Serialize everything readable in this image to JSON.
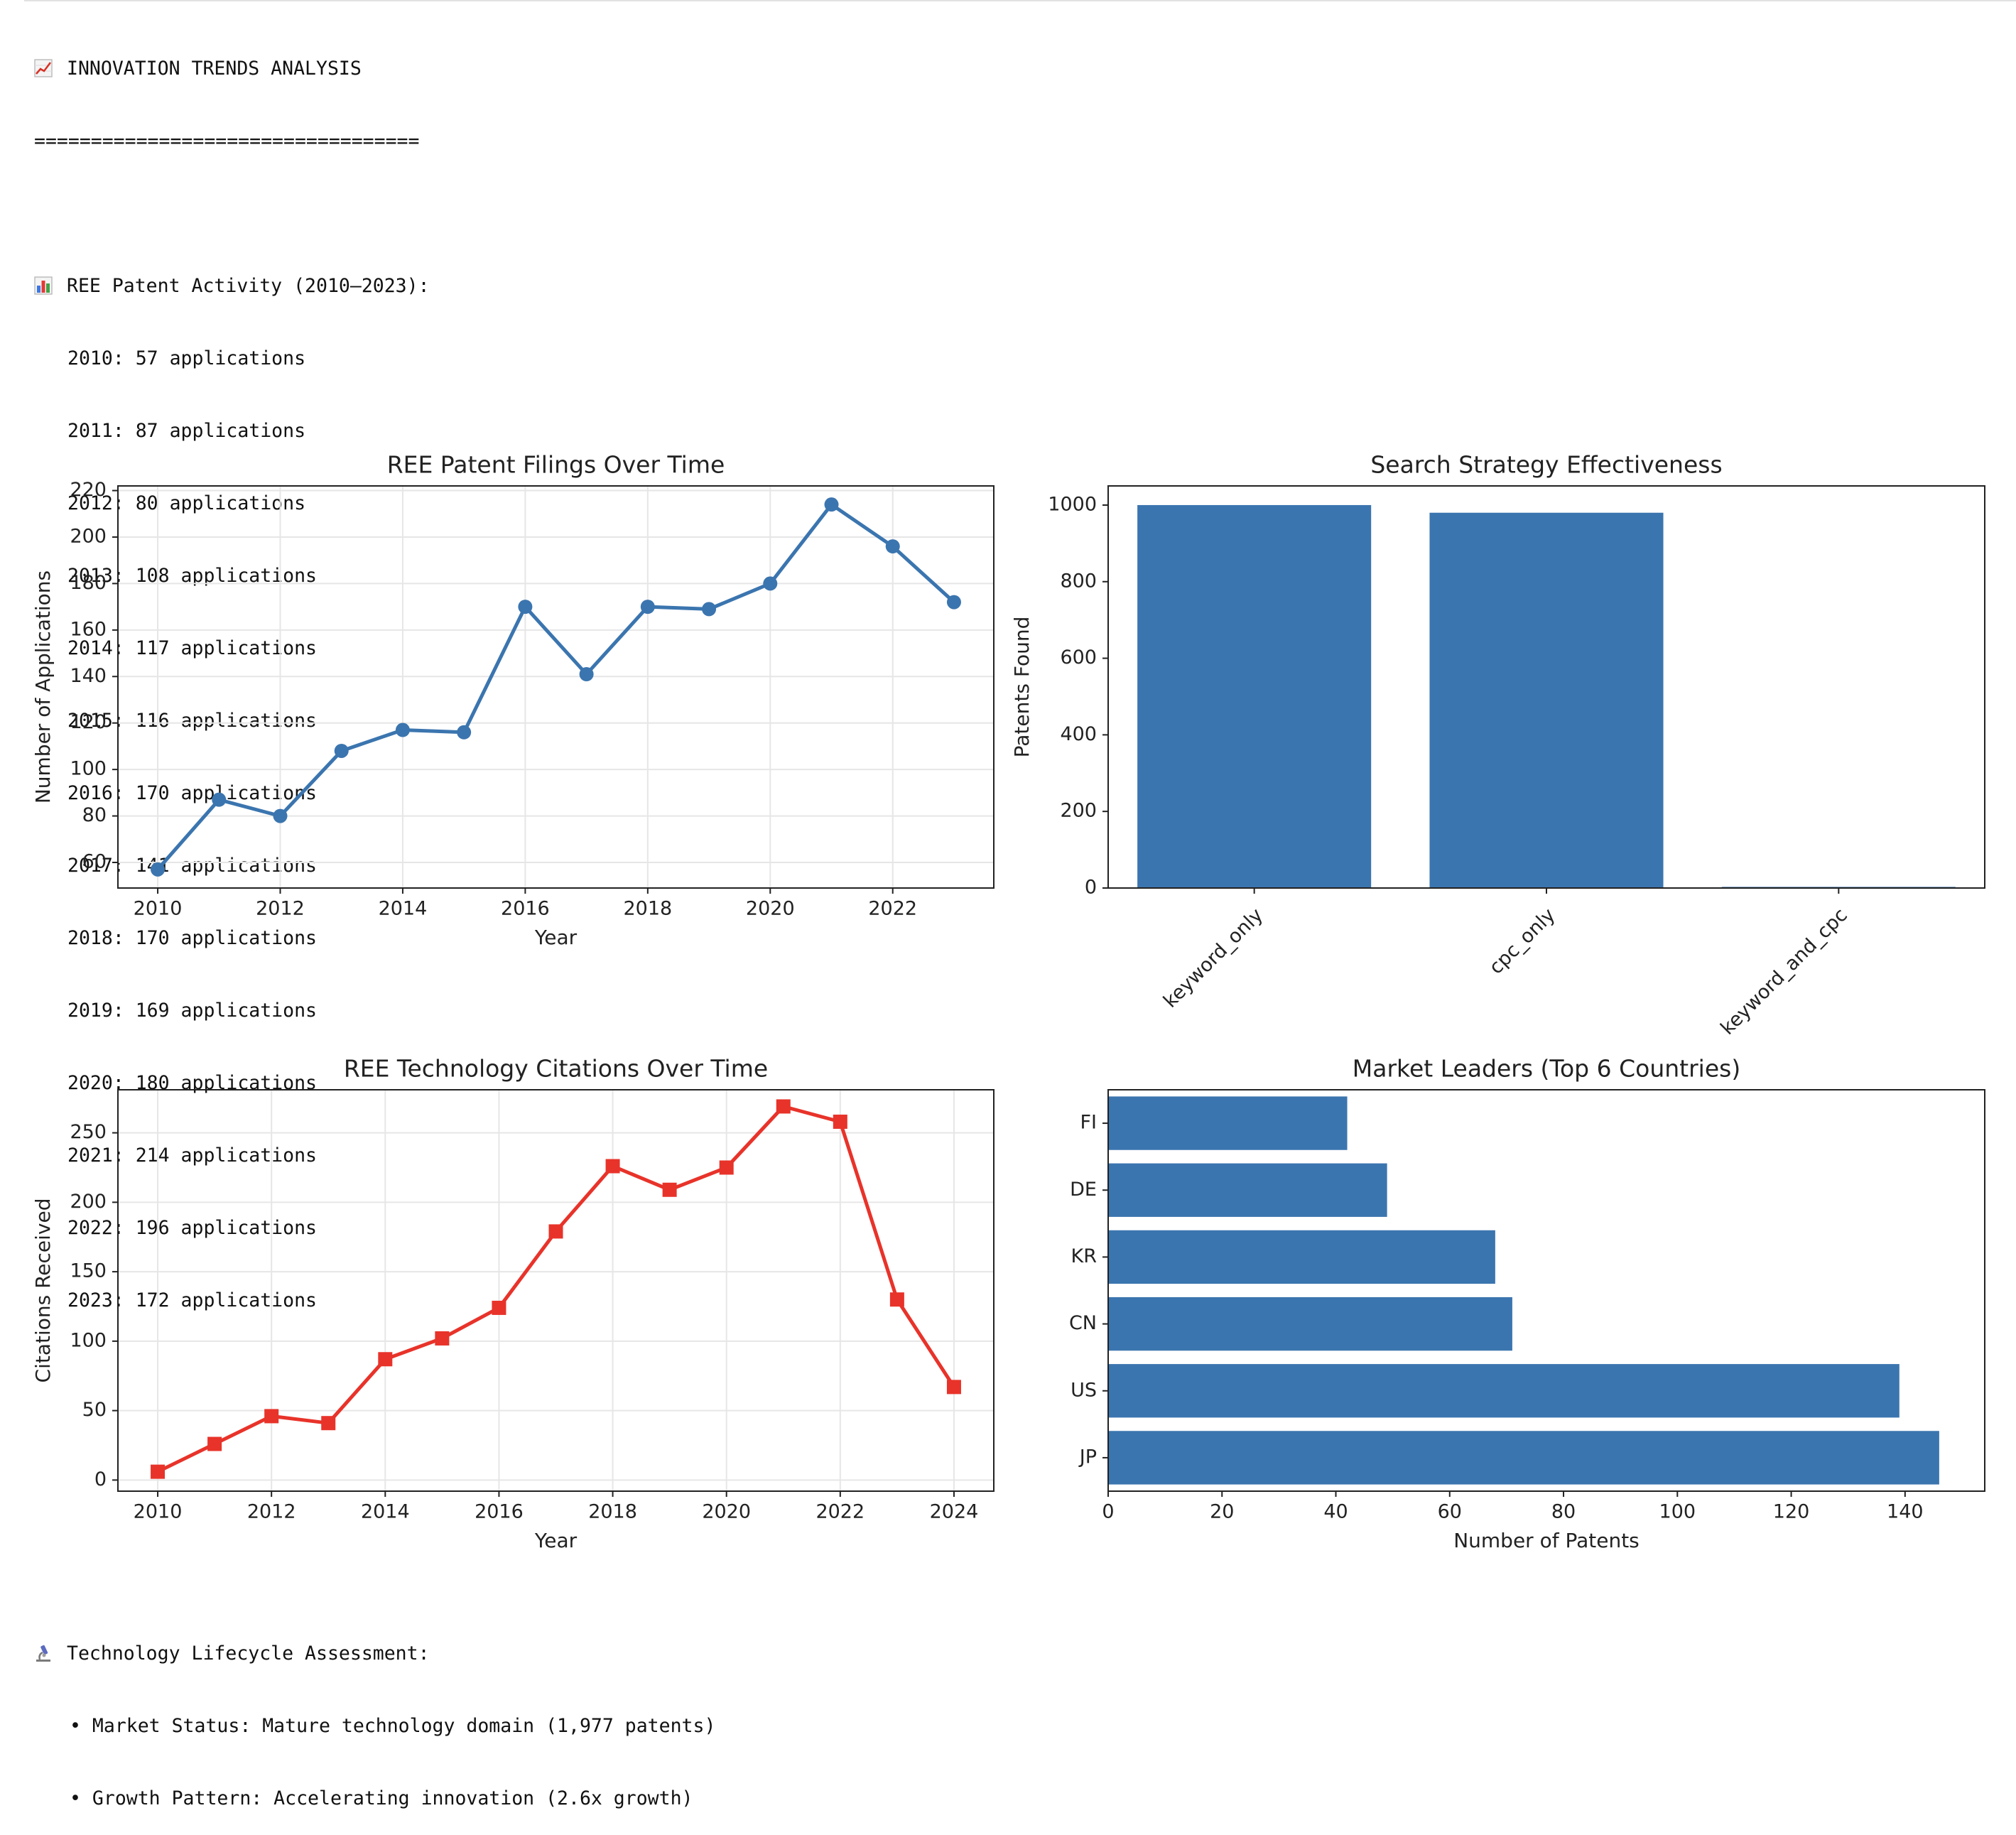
{
  "header": {
    "title": "INNOVATION TRENDS ANALYSIS",
    "title_icon": "chart-increasing-icon",
    "rule": "=================================="
  },
  "activity": {
    "heading": "REE Patent Activity (2010–2023):",
    "heading_icon": "bar-chart-icon",
    "lines": [
      "2010: 57 applications",
      "2011: 87 applications",
      "2012: 80 applications",
      "2013: 108 applications",
      "2014: 117 applications",
      "2015: 116 applications",
      "2016: 170 applications",
      "2017: 141 applications",
      "2018: 170 applications",
      "2019: 169 applications",
      "2020: 180 applications",
      "2021: 214 applications",
      "2022: 196 applications",
      "2023: 172 applications"
    ]
  },
  "lifecycle": {
    "heading": "Technology Lifecycle Assessment:",
    "heading_icon": "microscope-icon",
    "bullets": [
      "• Market Status: Mature technology domain (1,977 patents)",
      "• Growth Pattern: Accelerating innovation (2.6x growth)"
    ]
  },
  "colors": {
    "blue": "#3b75af",
    "red": "#e8332a",
    "grid": "#e6e6e6"
  },
  "chart_data": [
    {
      "type": "line",
      "title": "REE Patent Filings Over Time",
      "xlabel": "Year",
      "ylabel": "Number of Applications",
      "x": [
        2010,
        2011,
        2012,
        2013,
        2014,
        2015,
        2016,
        2017,
        2018,
        2019,
        2020,
        2021,
        2022,
        2023
      ],
      "values": [
        57,
        87,
        80,
        108,
        117,
        116,
        170,
        141,
        170,
        169,
        180,
        214,
        196,
        172
      ],
      "xticks": [
        "2010",
        "2012",
        "2014",
        "2016",
        "2018",
        "2020",
        "2022"
      ],
      "yticks": [
        "60",
        "80",
        "100",
        "120",
        "140",
        "160",
        "180",
        "200",
        "220"
      ],
      "xlim": [
        2009.35,
        2023.65
      ],
      "ylim": [
        49,
        222
      ],
      "marker": "circle",
      "color": "#3b75af",
      "grid": true
    },
    {
      "type": "bar",
      "title": "Search Strategy Effectiveness",
      "xlabel": "",
      "ylabel": "Patents Found",
      "categories": [
        "keyword_only",
        "cpc_only",
        "keyword_and_cpc"
      ],
      "values": [
        1000,
        980,
        3
      ],
      "yticks": [
        "0",
        "200",
        "400",
        "600",
        "800",
        "1000"
      ],
      "ylim": [
        0,
        1050
      ],
      "color": "#3b75af",
      "grid": false
    },
    {
      "type": "line",
      "title": "REE Technology Citations Over Time",
      "xlabel": "Year",
      "ylabel": "Citations Received",
      "x": [
        2010,
        2011,
        2012,
        2013,
        2014,
        2015,
        2016,
        2017,
        2018,
        2019,
        2020,
        2021,
        2022,
        2023,
        2024
      ],
      "values": [
        6,
        26,
        46,
        41,
        87,
        102,
        124,
        179,
        226,
        209,
        225,
        269,
        258,
        130,
        67
      ],
      "xticks": [
        "2010",
        "2012",
        "2014",
        "2016",
        "2018",
        "2020",
        "2022",
        "2024"
      ],
      "yticks": [
        "0",
        "50",
        "100",
        "150",
        "200",
        "250"
      ],
      "xlim": [
        2009.3,
        2024.7
      ],
      "ylim": [
        -8,
        281
      ],
      "marker": "square",
      "color": "#e8332a",
      "grid": true
    },
    {
      "type": "bar",
      "orientation": "horizontal",
      "title": "Market Leaders (Top 6 Countries)",
      "xlabel": "Number of Patents",
      "ylabel": "",
      "categories": [
        "FI",
        "DE",
        "KR",
        "CN",
        "US",
        "JP"
      ],
      "values": [
        42,
        49,
        68,
        71,
        139,
        146
      ],
      "xticks": [
        "0",
        "20",
        "40",
        "60",
        "80",
        "100",
        "120",
        "140"
      ],
      "xlim": [
        0,
        154
      ],
      "color": "#3b75af",
      "grid": false
    }
  ]
}
